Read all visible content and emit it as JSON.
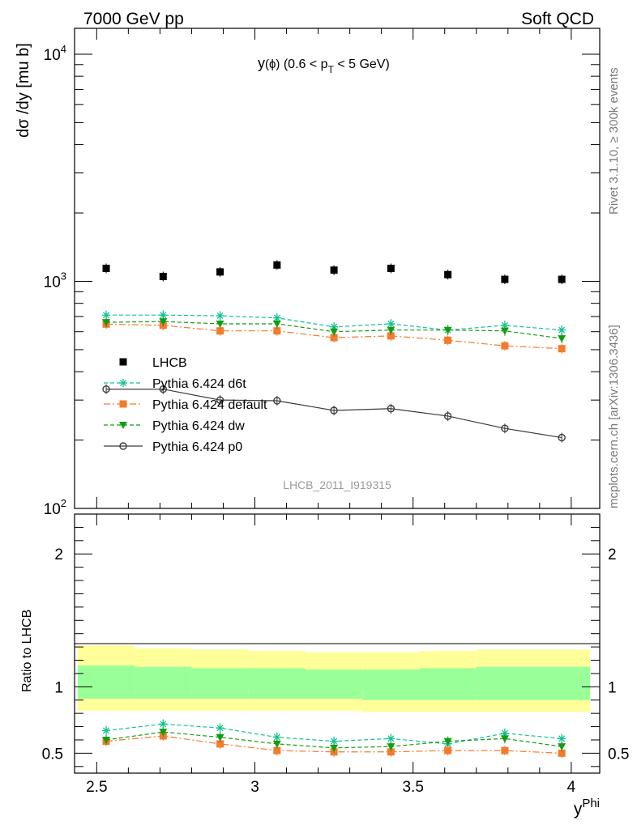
{
  "header": {
    "left": "7000 GeV pp",
    "right": "Soft QCD"
  },
  "side_labels": {
    "top": "Rivet 3.1.10, ≥ 300k events",
    "bottom": "mcplots.cern.ch [arXiv:1306.3436]"
  },
  "colors": {
    "lhcb": "#000000",
    "d6t": "#13c295",
    "default": "#f47b2c",
    "dw": "#139c13",
    "p0": "#3b3b3b",
    "band_outer": "#ffff99",
    "band_inner": "#99ff99"
  },
  "chart_data": [
    {
      "type": "scatter",
      "panel": "main",
      "title_parts": {
        "y": "y",
        "phi": "(ϕ)",
        "range_a": " (0.6 < p",
        "sub": "T",
        "range_b": " < 5 GeV)"
      },
      "ylabel": "dσ /dy [mu b]",
      "yscale": "log",
      "ylim": [
        100,
        13000
      ],
      "xlim": [
        2.43,
        4.09
      ],
      "y_ticks": [
        {
          "value": 10000,
          "base": "10",
          "exp": "4"
        },
        {
          "value": 1000,
          "base": "10",
          "exp": "3"
        },
        {
          "value": 100,
          "base": "10",
          "exp": "2"
        }
      ],
      "watermark": "LHCB_2011_I919315",
      "x": [
        2.53,
        2.71,
        2.89,
        3.07,
        3.25,
        3.43,
        3.61,
        3.79,
        3.97
      ],
      "series": [
        {
          "name": "LHCB",
          "key": "lhcb",
          "marker": "square",
          "line": "none",
          "values": [
            1140,
            1050,
            1100,
            1180,
            1120,
            1140,
            1070,
            1020,
            1020
          ]
        },
        {
          "name": "Pythia 6.424 d6t",
          "key": "d6t",
          "marker": "star",
          "line": "dashed",
          "values": [
            710,
            710,
            705,
            690,
            630,
            650,
            610,
            640,
            610
          ]
        },
        {
          "name": "Pythia 6.424 default",
          "key": "default",
          "marker": "square",
          "line": "dashdot",
          "values": [
            648,
            640,
            605,
            605,
            565,
            575,
            550,
            520,
            505
          ]
        },
        {
          "name": "Pythia 6.424 dw",
          "key": "dw",
          "marker": "triangle-down",
          "line": "dashed",
          "values": [
            660,
            665,
            650,
            650,
            600,
            610,
            610,
            605,
            560
          ]
        },
        {
          "name": "Pythia 6.424 p0",
          "key": "p0",
          "marker": "circle",
          "line": "solid",
          "values": [
            335,
            335,
            300,
            298,
            270,
            275,
            255,
            225,
            205
          ]
        }
      ],
      "legend_position": "left"
    },
    {
      "type": "scatter",
      "panel": "ratio",
      "ylabel": "Ratio to LHCB",
      "ylim": [
        0.35,
        2.3
      ],
      "xlim": [
        2.43,
        4.09
      ],
      "xlabel_main": "y",
      "xlabel_sup": "Phi",
      "x_ticks": [
        {
          "value": 2.5,
          "label": "2.5"
        },
        {
          "value": 3,
          "label": "3"
        },
        {
          "value": 3.5,
          "label": "3.5"
        },
        {
          "value": 4,
          "label": "4"
        }
      ],
      "y_ticks": [
        {
          "value": 0.5,
          "label": "0.5"
        },
        {
          "value": 1,
          "label": "1"
        },
        {
          "value": 2,
          "label": "2"
        }
      ],
      "bands": {
        "edges": [
          2.44,
          2.62,
          2.8,
          2.98,
          3.16,
          3.34,
          3.52,
          3.7,
          3.88,
          4.06
        ],
        "outer_low": [
          0.82,
          0.82,
          0.82,
          0.82,
          0.82,
          0.81,
          0.81,
          0.81,
          0.81
        ],
        "outer_high": [
          1.31,
          1.29,
          1.28,
          1.27,
          1.26,
          1.26,
          1.27,
          1.28,
          1.28
        ],
        "inner_low": [
          0.91,
          0.91,
          0.91,
          0.91,
          0.91,
          0.9,
          0.9,
          0.9,
          0.9
        ],
        "inner_high": [
          1.16,
          1.15,
          1.14,
          1.14,
          1.13,
          1.13,
          1.14,
          1.15,
          1.15
        ]
      },
      "x": [
        2.53,
        2.71,
        2.89,
        3.07,
        3.25,
        3.43,
        3.61,
        3.79,
        3.97
      ],
      "series": [
        {
          "name": "Pythia 6.424 d6t",
          "key": "d6t",
          "marker": "star",
          "line": "dashed",
          "values": [
            0.67,
            0.72,
            0.69,
            0.62,
            0.59,
            0.61,
            0.57,
            0.65,
            0.61
          ]
        },
        {
          "name": "Pythia 6.424 default",
          "key": "default",
          "marker": "square",
          "line": "dashdot",
          "values": [
            0.59,
            0.63,
            0.57,
            0.52,
            0.51,
            0.51,
            0.52,
            0.52,
            0.5
          ]
        },
        {
          "name": "Pythia 6.424 dw",
          "key": "dw",
          "marker": "triangle-down",
          "line": "dashed",
          "values": [
            0.6,
            0.66,
            0.62,
            0.57,
            0.54,
            0.55,
            0.59,
            0.61,
            0.55
          ]
        }
      ]
    }
  ]
}
